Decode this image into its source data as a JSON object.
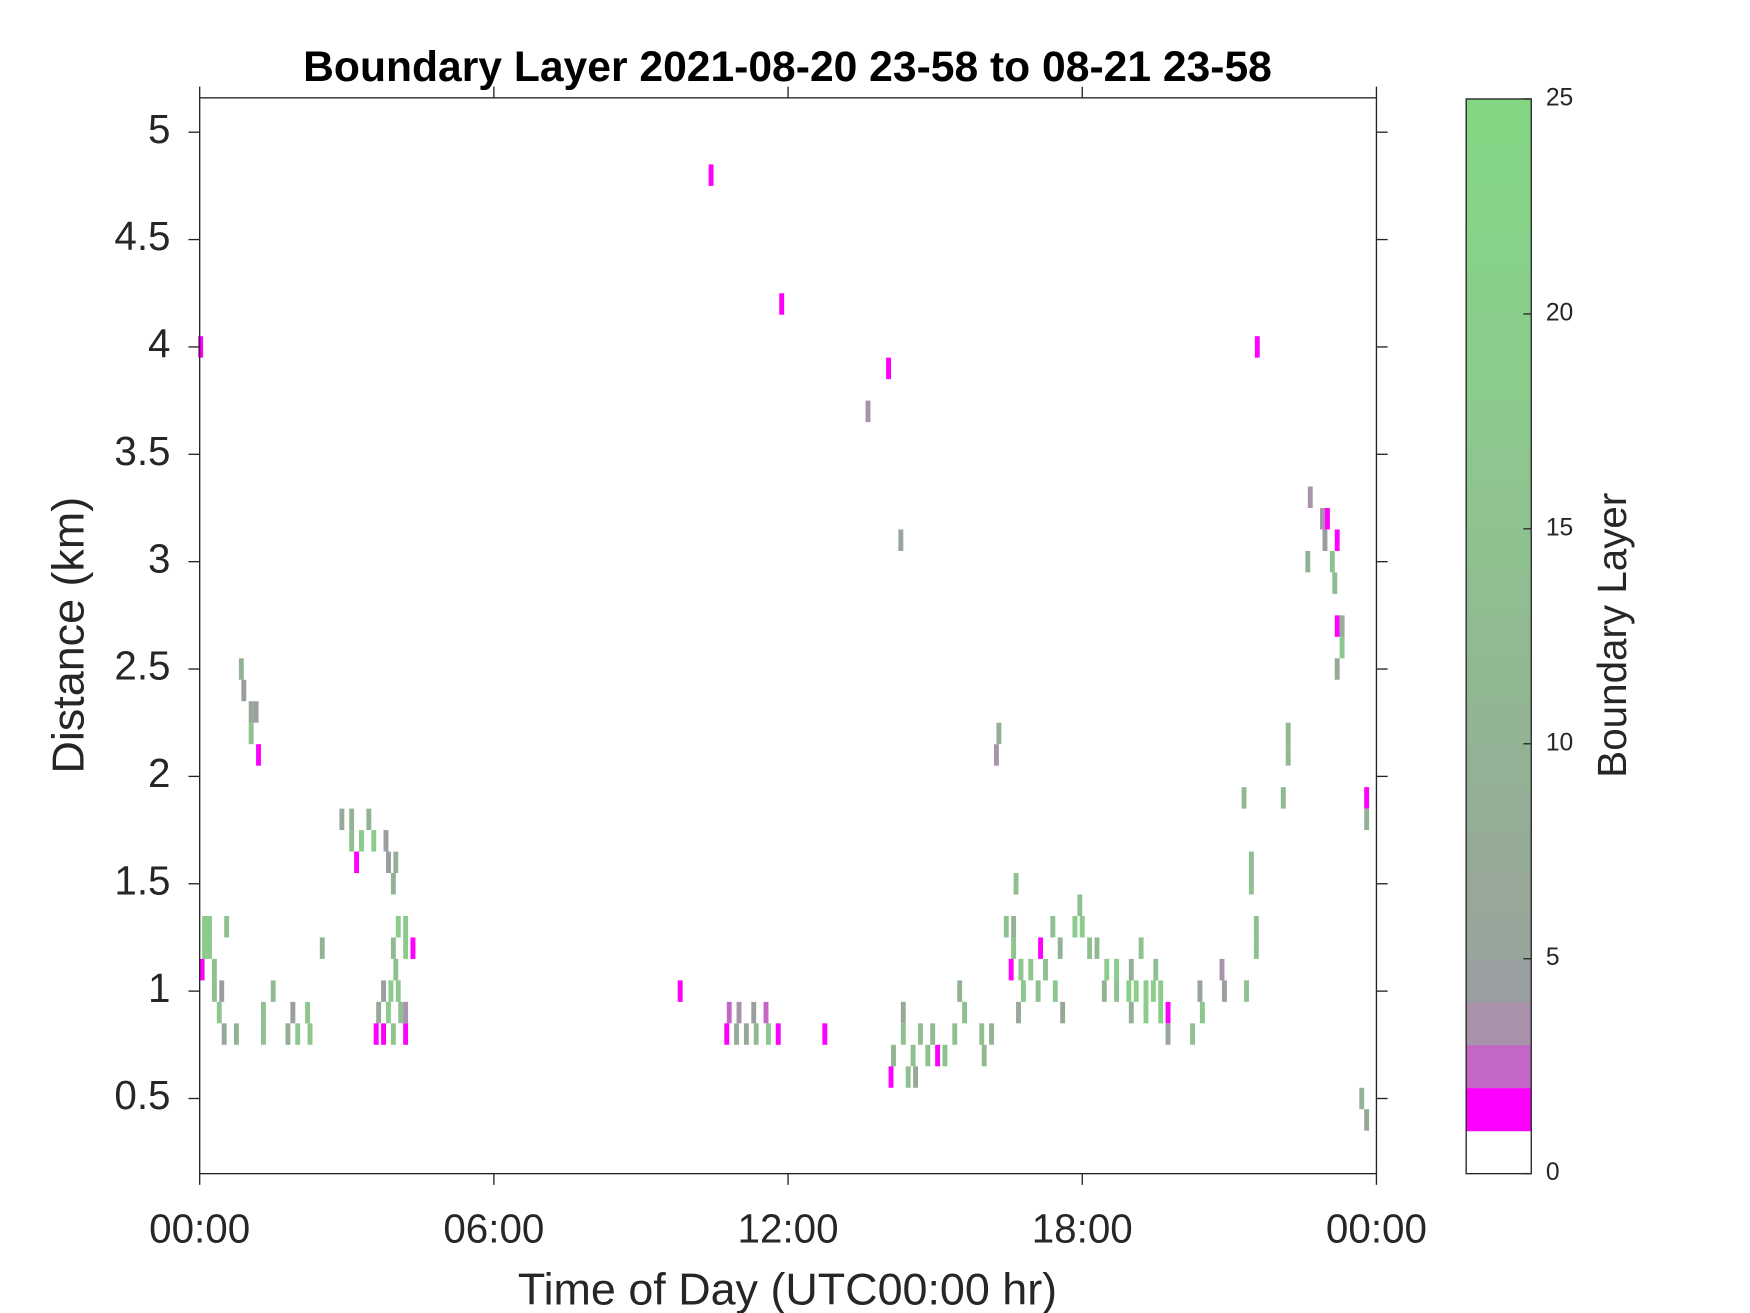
{
  "chart_data": {
    "type": "heatmap",
    "title": "Boundary Layer 2021-08-20 23-58 to 08-21 23-58",
    "x_label": "Time of Day (UTC00:00 hr)",
    "y_label": "Distance (km)",
    "colorbar_label": "Boundary Layer",
    "xlim": [
      0,
      24
    ],
    "ylim": [
      0.15,
      5.16
    ],
    "xticks": [
      {
        "value": 0,
        "label": "00:00"
      },
      {
        "value": 6,
        "label": "06:00"
      },
      {
        "value": 12,
        "label": "12:00"
      },
      {
        "value": 18,
        "label": "18:00"
      },
      {
        "value": 24,
        "label": "00:00"
      }
    ],
    "yticks": [
      0.5,
      1,
      1.5,
      2,
      2.5,
      3,
      3.5,
      4,
      4.5,
      5
    ],
    "clim": [
      0,
      25
    ],
    "colorbar_ticks": [
      0,
      5,
      10,
      15,
      20,
      25
    ],
    "colormap": [
      "#ffffff",
      "#ff00ff",
      "#c366c6",
      "#a993ab",
      "#999ea0",
      "#98a59a",
      "#97a898",
      "#96ab97",
      "#95ae96",
      "#94b195",
      "#93b494",
      "#92b793",
      "#91ba92",
      "#90bd91",
      "#8fc090",
      "#8ec38f",
      "#8dc68e",
      "#8cc98d",
      "#8bcb8c",
      "#8acd8b",
      "#89cf8a",
      "#88d189",
      "#87d388",
      "#86d487",
      "#84d584"
    ],
    "dx": 0.1,
    "dy": 0.1,
    "x": [
      0.02,
      10.43,
      11.87,
      14.05,
      13.63,
      14.3,
      21.57,
      16.3,
      16.25,
      22.65,
      22.9,
      23.0,
      22.95,
      23.2,
      23.1,
      22.6,
      23.15,
      23.2,
      23.3,
      23.3,
      23.2,
      22.2,
      22.2,
      23.8,
      23.8,
      21.3,
      22.1,
      21.45,
      21.45,
      21.55,
      21.55,
      21.35,
      20.9,
      20.85,
      20.4,
      20.45,
      20.25,
      23.7,
      23.8,
      0.1,
      0.2,
      0.1,
      0.2,
      0.05,
      0.3,
      0.3,
      0.45,
      0.4,
      0.55,
      0.5,
      0.75,
      0.85,
      0.9,
      1.05,
      1.15,
      1.05,
      1.2,
      1.3,
      1.3,
      1.5,
      1.8,
      1.9,
      2.0,
      2.2,
      2.25,
      2.5,
      2.9,
      3.1,
      3.3,
      3.1,
      3.2,
      3.45,
      3.55,
      3.8,
      3.85,
      4.0,
      3.95,
      4.05,
      4.2,
      4.2,
      4.35,
      3.95,
      4.0,
      3.75,
      3.9,
      4.05,
      3.65,
      3.85,
      4.1,
      4.2,
      3.6,
      3.75,
      3.95,
      4.2,
      9.8,
      10.8,
      11.0,
      11.3,
      11.55,
      10.75,
      10.95,
      11.15,
      11.35,
      11.6,
      11.8,
      12.75,
      14.1,
      14.15,
      14.35,
      14.35,
      14.45,
      14.6,
      14.55,
      14.7,
      14.85,
      15.05,
      14.95,
      15.2,
      15.4,
      15.6,
      15.5,
      15.95,
      16.15,
      16.0,
      16.45,
      16.6,
      16.65,
      16.6,
      16.55,
      16.75,
      16.8,
      16.95,
      17.15,
      17.1,
      16.7,
      17.25,
      17.4,
      17.45,
      17.55,
      17.6,
      17.85,
      18.0,
      17.95,
      18.15,
      18.45,
      18.3,
      18.5,
      18.7,
      18.7,
      18.95,
      19.1,
      19.3,
      19.45,
      19.6,
      19.3,
      19.6,
      19.75,
      19.5,
      19.0,
      19.75,
      19.0,
      19.2
    ],
    "y": [
      4.0,
      4.8,
      4.2,
      3.9,
      3.7,
      3.1,
      4.0,
      2.2,
      2.1,
      3.3,
      3.2,
      3.2,
      3.1,
      3.1,
      3.0,
      3.0,
      2.9,
      2.7,
      2.7,
      2.6,
      2.5,
      2.2,
      2.1,
      1.9,
      1.8,
      1.9,
      1.9,
      1.6,
      1.5,
      1.3,
      1.2,
      1.0,
      1.0,
      1.1,
      1.0,
      0.9,
      0.8,
      0.5,
      0.4,
      1.3,
      1.3,
      1.2,
      1.2,
      1.1,
      1.1,
      1.0,
      1.0,
      0.9,
      1.3,
      0.8,
      0.8,
      2.5,
      2.4,
      2.3,
      2.3,
      2.2,
      2.1,
      0.9,
      0.8,
      1.0,
      0.8,
      0.9,
      0.8,
      0.9,
      0.8,
      1.2,
      1.8,
      1.7,
      1.7,
      1.8,
      1.6,
      1.8,
      1.7,
      1.7,
      1.6,
      1.6,
      1.5,
      1.3,
      1.3,
      1.2,
      1.2,
      1.2,
      1.1,
      1.0,
      1.0,
      1.0,
      0.9,
      0.9,
      0.9,
      0.9,
      0.8,
      0.8,
      0.8,
      0.8,
      1.0,
      0.9,
      0.9,
      0.9,
      0.9,
      0.8,
      0.8,
      0.8,
      0.8,
      0.8,
      0.8,
      0.8,
      0.6,
      0.7,
      0.9,
      0.8,
      0.6,
      0.6,
      0.7,
      0.8,
      0.7,
      0.7,
      0.8,
      0.7,
      0.8,
      0.9,
      1.0,
      0.8,
      0.8,
      0.7,
      1.3,
      1.3,
      1.5,
      1.2,
      1.1,
      1.1,
      1.0,
      1.1,
      1.2,
      1.0,
      0.9,
      1.1,
      1.3,
      1.0,
      1.2,
      0.9,
      1.3,
      1.3,
      1.4,
      1.2,
      1.0,
      1.2,
      1.1,
      1.1,
      1.0,
      1.0,
      1.0,
      1.0,
      1.0,
      1.0,
      0.9,
      0.9,
      0.9,
      1.1,
      0.9,
      0.8,
      1.1,
      1.2
    ],
    "values": [
      1,
      1,
      1,
      1,
      3,
      5,
      1,
      8,
      3,
      3,
      3,
      1,
      4,
      1,
      14,
      10,
      12,
      1,
      8,
      16,
      6,
      12,
      12,
      1,
      10,
      12,
      12,
      14,
      14,
      14,
      14,
      14,
      4,
      3,
      5,
      16,
      14,
      10,
      6,
      18,
      18,
      18,
      18,
      1,
      14,
      14,
      4,
      16,
      14,
      6,
      10,
      10,
      4,
      6,
      4,
      14,
      1,
      14,
      14,
      12,
      8,
      4,
      16,
      16,
      16,
      10,
      6,
      14,
      18,
      10,
      1,
      10,
      18,
      4,
      4,
      8,
      10,
      18,
      18,
      18,
      1,
      12,
      14,
      4,
      18,
      16,
      6,
      18,
      14,
      3,
      1,
      1,
      16,
      1,
      1,
      2,
      3,
      4,
      2,
      1,
      8,
      6,
      12,
      16,
      1,
      1,
      1,
      10,
      6,
      14,
      14,
      6,
      14,
      14,
      14,
      1,
      12,
      14,
      14,
      14,
      10,
      14,
      10,
      12,
      14,
      10,
      14,
      16,
      1,
      16,
      16,
      16,
      1,
      14,
      6,
      14,
      14,
      16,
      10,
      6,
      18,
      18,
      14,
      14,
      10,
      12,
      18,
      18,
      14,
      20,
      20,
      18,
      20,
      18,
      18,
      20,
      1,
      14,
      8,
      6,
      8,
      14
    ]
  }
}
